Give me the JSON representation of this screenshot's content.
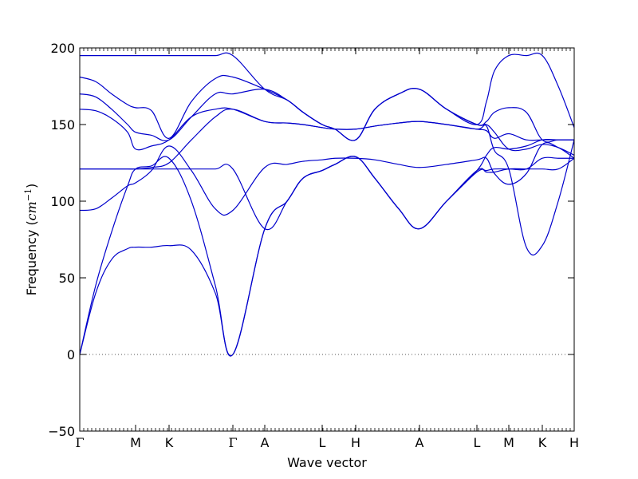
{
  "chart_data": {
    "type": "line",
    "title": "",
    "xlabel": "Wave vector",
    "ylabel": "Frequency (cm⁻¹)",
    "ylabel_text": "Frequency (",
    "ylabel_unit": "cm",
    "ylabel_exp": "−1",
    "ylabel_close": ")",
    "ylim": [
      -50,
      200
    ],
    "yticks": [
      -50,
      0,
      50,
      100,
      150,
      200
    ],
    "ytick_labels": [
      "−50",
      "0",
      "50",
      "100",
      "150",
      "200"
    ],
    "xlim": [
      0,
      3.1
    ],
    "xticks": [
      {
        "pos": 0.0,
        "label": "Γ"
      },
      {
        "pos": 0.35,
        "label": "M"
      },
      {
        "pos": 0.56,
        "label": "K"
      },
      {
        "pos": 0.96,
        "label": "Γ"
      },
      {
        "pos": 1.16,
        "label": "A"
      },
      {
        "pos": 1.52,
        "label": "L"
      },
      {
        "pos": 1.73,
        "label": "H"
      },
      {
        "pos": 2.13,
        "label": "A"
      },
      {
        "pos": 2.49,
        "label": "L"
      },
      {
        "pos": 2.69,
        "label": "M"
      },
      {
        "pos": 2.9,
        "label": "K"
      },
      {
        "pos": 3.1,
        "label": "H"
      }
    ],
    "zero_line": true,
    "line_color": "#0000cc",
    "zero_line_color": "#555555",
    "series": [
      {
        "x": [
          0,
          0.1,
          0.2,
          0.3,
          0.35,
          0.45,
          0.56,
          0.7,
          0.85,
          0.96,
          1.16,
          1.3,
          1.4,
          1.52,
          1.6,
          1.73,
          1.85,
          2.0,
          2.13,
          2.3,
          2.49,
          2.55,
          2.6,
          2.69,
          2.8,
          2.9,
          3.0,
          3.1
        ],
        "y": [
          0,
          40,
          62,
          69,
          70,
          70,
          71,
          68,
          40,
          0,
          82,
          100,
          115,
          120,
          124,
          129,
          115,
          95,
          82,
          100,
          120,
          119,
          119,
          121,
          121,
          121,
          121,
          128
        ]
      },
      {
        "x": [
          0,
          0.1,
          0.2,
          0.3,
          0.35,
          0.45,
          0.56,
          0.7,
          0.85,
          0.96,
          1.16,
          1.3,
          1.4,
          1.52,
          1.6,
          1.73,
          1.85,
          2.0,
          2.13,
          2.3,
          2.49,
          2.55,
          2.6,
          2.69,
          2.8,
          2.9,
          3.0,
          3.1
        ],
        "y": [
          0,
          45,
          80,
          110,
          121,
          123,
          128,
          100,
          45,
          0,
          82,
          100,
          115,
          120,
          124,
          129,
          115,
          95,
          82,
          100,
          119,
          120,
          121,
          121,
          121,
          128,
          128,
          128
        ]
      },
      {
        "x": [
          0,
          0.1,
          0.2,
          0.3,
          0.35,
          0.45,
          0.56,
          0.7,
          0.85,
          0.96,
          1.16,
          1.3,
          1.4,
          1.52,
          1.6,
          1.73,
          1.85,
          2.0,
          2.13,
          2.3,
          2.49,
          2.55,
          2.6,
          2.69,
          2.8,
          2.9,
          3.0,
          3.1
        ],
        "y": [
          94,
          95,
          102,
          110,
          112,
          120,
          136,
          120,
          95,
          94,
          122,
          124,
          126,
          127,
          128,
          128,
          127,
          124,
          122,
          124,
          127,
          128,
          118,
          111,
          118,
          137,
          135,
          128
        ]
      },
      {
        "x": [
          0,
          0.1,
          0.2,
          0.3,
          0.35,
          0.45,
          0.56,
          0.7,
          0.85,
          0.96,
          1.16,
          1.3,
          1.4,
          1.52,
          1.6,
          1.73,
          1.85,
          2.0,
          2.13,
          2.3,
          2.49,
          2.55,
          2.6,
          2.69,
          2.8,
          2.9,
          3.0,
          3.1
        ],
        "y": [
          121,
          121,
          121,
          121,
          121,
          122,
          125,
          140,
          155,
          160,
          152,
          151,
          150,
          148,
          147,
          147,
          149,
          151,
          152,
          150,
          147,
          149,
          133,
          121,
          70,
          71,
          100,
          140
        ]
      },
      {
        "x": [
          0,
          0.1,
          0.2,
          0.3,
          0.35,
          0.45,
          0.56,
          0.7,
          0.85,
          0.96,
          1.16,
          1.3,
          1.4,
          1.52,
          1.6,
          1.73,
          1.85,
          2.0,
          2.13,
          2.3,
          2.49,
          2.55,
          2.6,
          2.69,
          2.8,
          2.9,
          3.0,
          3.1
        ],
        "y": [
          121,
          121,
          121,
          121,
          121,
          121,
          121,
          121,
          121,
          121,
          82,
          100,
          115,
          120,
          124,
          129,
          115,
          95,
          82,
          100,
          120,
          130,
          135,
          134,
          136,
          140,
          140,
          140
        ]
      },
      {
        "x": [
          0,
          0.1,
          0.2,
          0.3,
          0.35,
          0.45,
          0.56,
          0.7,
          0.85,
          0.96,
          1.16,
          1.3,
          1.4,
          1.52,
          1.6,
          1.73,
          1.85,
          2.0,
          2.13,
          2.3,
          2.49,
          2.55,
          2.6,
          2.69,
          2.8,
          2.9,
          3.0,
          3.1
        ],
        "y": [
          160,
          159,
          154,
          145,
          134,
          136,
          140,
          155,
          160,
          160,
          152,
          151,
          150,
          148,
          147,
          147,
          149,
          151,
          152,
          150,
          147,
          146,
          141,
          144,
          140,
          140,
          140,
          140
        ]
      },
      {
        "x": [
          0,
          0.1,
          0.2,
          0.3,
          0.35,
          0.45,
          0.56,
          0.7,
          0.85,
          0.96,
          1.16,
          1.3,
          1.4,
          1.52,
          1.6,
          1.73,
          1.85,
          2.0,
          2.13,
          2.3,
          2.49,
          2.55,
          2.6,
          2.69,
          2.8,
          2.9,
          3.0,
          3.1
        ],
        "y": [
          170,
          168,
          160,
          150,
          145,
          143,
          140,
          155,
          170,
          170,
          173,
          166,
          158,
          150,
          147,
          140,
          160,
          170,
          173,
          160,
          150,
          150,
          145,
          134,
          134,
          137,
          135,
          130
        ]
      },
      {
        "x": [
          0,
          0.1,
          0.2,
          0.3,
          0.35,
          0.45,
          0.56,
          0.7,
          0.85,
          0.96,
          1.16,
          1.3,
          1.4,
          1.52,
          1.6,
          1.73,
          1.85,
          2.0,
          2.13,
          2.3,
          2.49,
          2.55,
          2.6,
          2.69,
          2.8,
          2.9,
          3.0,
          3.1
        ],
        "y": [
          181,
          178,
          170,
          163,
          161,
          159,
          141,
          165,
          180,
          181,
          173,
          166,
          158,
          150,
          147,
          140,
          160,
          170,
          173,
          160,
          150,
          152,
          158,
          161,
          158,
          140,
          140,
          140
        ]
      },
      {
        "x": [
          0,
          0.1,
          0.2,
          0.3,
          0.35,
          0.45,
          0.56,
          0.7,
          0.85,
          0.96,
          1.16,
          1.3,
          1.4,
          1.52,
          1.6,
          1.73,
          1.85,
          2.0,
          2.13,
          2.3,
          2.49,
          2.55,
          2.6,
          2.69,
          2.8,
          2.9,
          3.0,
          3.1
        ],
        "y": [
          195,
          195,
          195,
          195,
          195,
          195,
          195,
          195,
          195,
          195,
          173,
          166,
          158,
          150,
          147,
          140,
          160,
          170,
          173,
          160,
          150,
          165,
          185,
          195,
          195,
          195,
          175,
          148
        ]
      }
    ]
  }
}
